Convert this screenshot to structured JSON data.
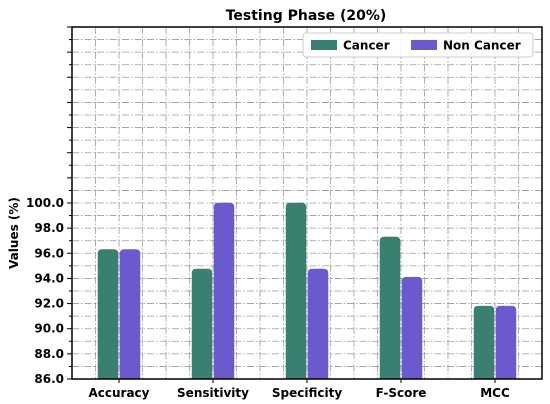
{
  "chart_data": {
    "type": "bar",
    "title": "Testing Phase (20%)",
    "xlabel": "",
    "ylabel": "Values (%)",
    "categories": [
      "Accuracy",
      "Sensitivity",
      "Specificity",
      "F-Score",
      "MCC"
    ],
    "series": [
      {
        "name": "Cancer",
        "color": "#3a7f72",
        "values": [
          96.3,
          94.75,
          100.0,
          97.3,
          91.8
        ]
      },
      {
        "name": "Non Cancer",
        "color": "#6a5acd",
        "values": [
          96.3,
          100.0,
          94.75,
          94.1,
          91.8
        ]
      }
    ],
    "ylim": [
      86,
      114
    ],
    "yticks": [
      86.0,
      88.0,
      90.0,
      92.0,
      94.0,
      96.0,
      98.0,
      100.0
    ],
    "ytick_labels": [
      "86.0",
      "88.0",
      "90.0",
      "92.0",
      "94.0",
      "96.0",
      "98.0",
      "100.0"
    ],
    "grid": true,
    "legend_position": "top-right"
  }
}
